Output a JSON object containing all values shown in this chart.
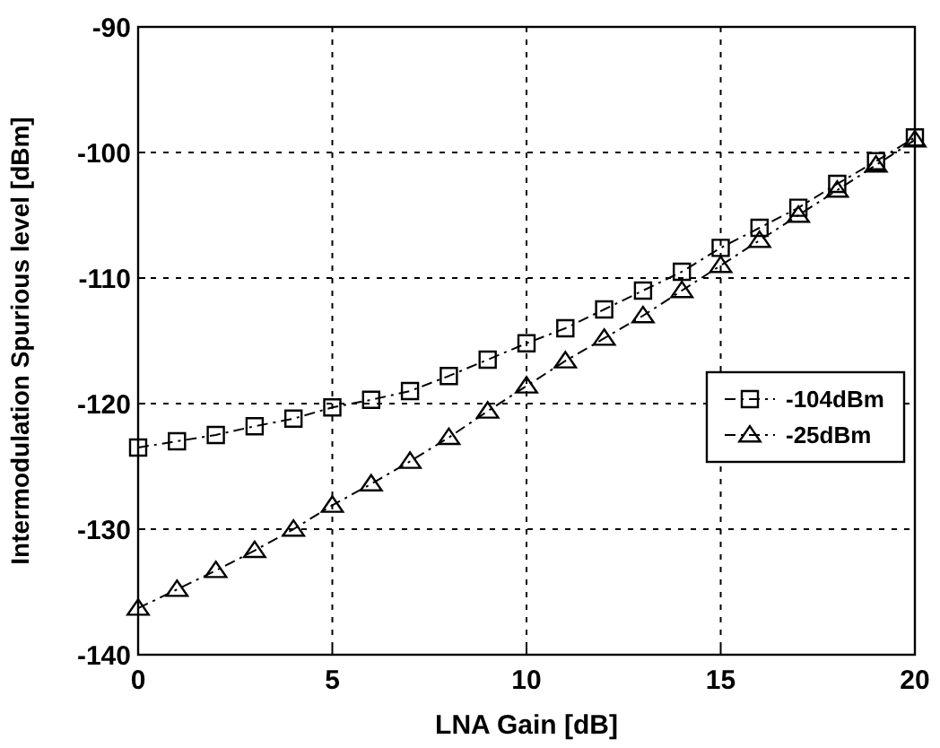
{
  "chart_data": {
    "type": "line",
    "xlabel": "LNA Gain [dB]",
    "ylabel": "Intermodulation Spurious level [dBm]",
    "x": [
      0,
      1,
      2,
      3,
      4,
      5,
      6,
      7,
      8,
      9,
      10,
      11,
      12,
      13,
      14,
      15,
      16,
      17,
      18,
      19,
      20
    ],
    "xlim": [
      0,
      20
    ],
    "xticks": [
      0,
      5,
      10,
      15,
      20
    ],
    "ylim": [
      -140,
      -90
    ],
    "yticks": [
      -140,
      -130,
      -120,
      -110,
      -100,
      -90
    ],
    "grid": true,
    "legend": "right",
    "line_style": "dashed",
    "series": [
      {
        "name": "-104dBm",
        "color": "#000000",
        "marker": "square",
        "values": [
          -123.5,
          -123,
          -122.5,
          -121.8,
          -121.2,
          -120.3,
          -119.7,
          -119,
          -117.8,
          -116.5,
          -115.2,
          -114,
          -112.5,
          -111,
          -109.5,
          -107.6,
          -106,
          -104.4,
          -102.5,
          -100.7,
          -98.8
        ]
      },
      {
        "name": "-25dBm",
        "color": "#000000",
        "marker": "triangle",
        "values": [
          -136.3,
          -134.8,
          -133.3,
          -131.7,
          -130,
          -128.1,
          -126.4,
          -124.6,
          -122.7,
          -120.6,
          -118.6,
          -116.6,
          -114.8,
          -113,
          -111,
          -109,
          -107,
          -105,
          -103,
          -101,
          -99
        ]
      }
    ]
  }
}
